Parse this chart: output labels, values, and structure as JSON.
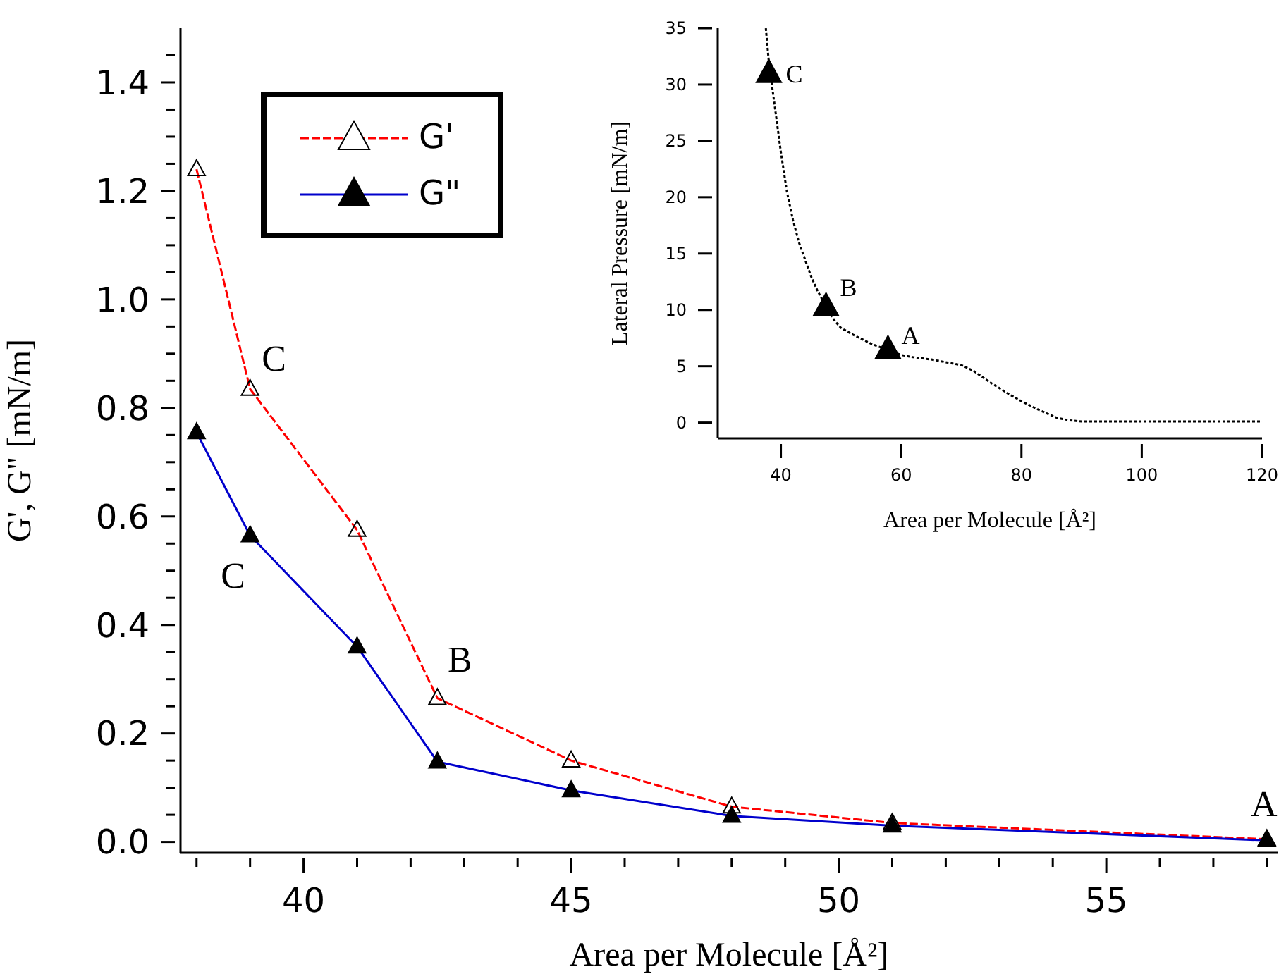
{
  "chart_data": [
    {
      "type": "line",
      "xlabel": "Area per Molecule [Å²]",
      "ylabel": "G', G\" [mN/m]",
      "x": [
        38,
        39,
        41,
        42.5,
        45,
        48,
        51,
        58
      ],
      "xlim": [
        37.7,
        58.2
      ],
      "xticks": [
        {
          "value": 38,
          "label": null
        },
        {
          "value": 39,
          "label": null
        },
        40,
        {
          "value": 41,
          "label": null
        },
        {
          "value": 42,
          "label": null
        },
        {
          "value": 43,
          "label": null
        },
        {
          "value": 44,
          "label": null
        },
        45,
        {
          "value": 46,
          "label": null
        },
        {
          "value": 47,
          "label": null
        },
        {
          "value": 48,
          "label": null
        },
        {
          "value": 49,
          "label": null
        },
        50,
        {
          "value": 51,
          "label": null
        },
        {
          "value": 52,
          "label": null
        },
        {
          "value": 53,
          "label": null
        },
        {
          "value": 54,
          "label": null
        },
        55,
        {
          "value": 56,
          "label": null
        },
        {
          "value": 57,
          "label": null
        },
        {
          "value": 58,
          "label": null
        }
      ],
      "ylim": [
        -0.02,
        1.5
      ],
      "yticks": [
        {
          "value": 0,
          "label": "0.0"
        },
        {
          "value": 0.05,
          "label": null
        },
        {
          "value": 0.1,
          "label": null
        },
        {
          "value": 0.15,
          "label": null
        },
        {
          "value": 0.2,
          "label": "0.2"
        },
        {
          "value": 0.25,
          "label": null
        },
        {
          "value": 0.3,
          "label": null
        },
        {
          "value": 0.35,
          "label": null
        },
        {
          "value": 0.4,
          "label": "0.4"
        },
        {
          "value": 0.45,
          "label": null
        },
        {
          "value": 0.5,
          "label": null
        },
        {
          "value": 0.55,
          "label": null
        },
        {
          "value": 0.6,
          "label": "0.6"
        },
        {
          "value": 0.65,
          "label": null
        },
        {
          "value": 0.7,
          "label": null
        },
        {
          "value": 0.75,
          "label": null
        },
        {
          "value": 0.8,
          "label": "0.8"
        },
        {
          "value": 0.85,
          "label": null
        },
        {
          "value": 0.9,
          "label": null
        },
        {
          "value": 0.95,
          "label": null
        },
        {
          "value": 1.0,
          "label": "1.0"
        },
        {
          "value": 1.05,
          "label": null
        },
        {
          "value": 1.1,
          "label": null
        },
        {
          "value": 1.15,
          "label": null
        },
        {
          "value": 1.2,
          "label": "1.2"
        },
        {
          "value": 1.25,
          "label": null
        },
        {
          "value": 1.3,
          "label": null
        },
        {
          "value": 1.35,
          "label": null
        },
        {
          "value": 1.4,
          "label": "1.4"
        },
        {
          "value": 1.45,
          "label": null
        }
      ],
      "marker": "triangle",
      "legend": "top left",
      "series": [
        {
          "name": "G'",
          "color": "#ff0000",
          "line_style": "dashed",
          "values": [
            1.24,
            0.835,
            0.575,
            0.265,
            0.15,
            0.065,
            0.035,
            0.005
          ]
        },
        {
          "name": "G\"",
          "color": "#0000cc",
          "line_style": "solid",
          "values": [
            0.755,
            0.565,
            0.36,
            0.148,
            0.095,
            0.048,
            0.03,
            0.003
          ]
        }
      ],
      "annotations": [
        {
          "text": "C",
          "x": 39,
          "y": 0.835
        },
        {
          "text": "C",
          "x": 39,
          "y": 0.565
        },
        {
          "text": "B",
          "x": 42.5,
          "y": 0.265
        },
        {
          "text": "A",
          "x": 58,
          "y": 0.003
        }
      ]
    },
    {
      "type": "line",
      "xlabel": "Area per Molecule [Å²]",
      "ylabel": "Lateral Pressure [mN/m]",
      "xlim": [
        29.5,
        120
      ],
      "xticks": [
        40,
        60,
        80,
        100,
        120
      ],
      "ylim": [
        -1.4,
        35
      ],
      "yticks": [
        0,
        5,
        10,
        15,
        20,
        25,
        30,
        35
      ],
      "series": [
        {
          "type": "line",
          "color": "#000000",
          "line_style": "dotted",
          "marker": "none",
          "x": [
            37.5,
            38,
            39,
            40,
            41,
            42,
            43,
            44,
            45,
            46,
            47,
            48,
            49,
            50,
            52,
            55,
            58,
            60,
            62,
            65,
            70,
            72,
            75,
            78,
            80,
            83,
            86,
            88,
            90,
            100,
            110,
            120
          ],
          "values": [
            35,
            32,
            28,
            24,
            20.5,
            18,
            16,
            14.5,
            13,
            11.8,
            10.8,
            9.8,
            9,
            8.4,
            7.8,
            7,
            6.4,
            6,
            5.8,
            5.6,
            5.1,
            4.6,
            3.5,
            2.5,
            1.9,
            1.1,
            0.4,
            0.2,
            0.1,
            0.1,
            0.1,
            0.1
          ]
        },
        {
          "type": "scatter",
          "color": "#000000",
          "marker": "triangle",
          "x": [
            38,
            47.5,
            57.8
          ],
          "values": [
            31,
            10.3,
            6.5
          ]
        }
      ],
      "annotations": [
        {
          "text": "C",
          "x": 38,
          "y": 31
        },
        {
          "text": "B",
          "x": 47.5,
          "y": 10.3
        },
        {
          "text": "A",
          "x": 57.8,
          "y": 6.5
        }
      ]
    }
  ]
}
